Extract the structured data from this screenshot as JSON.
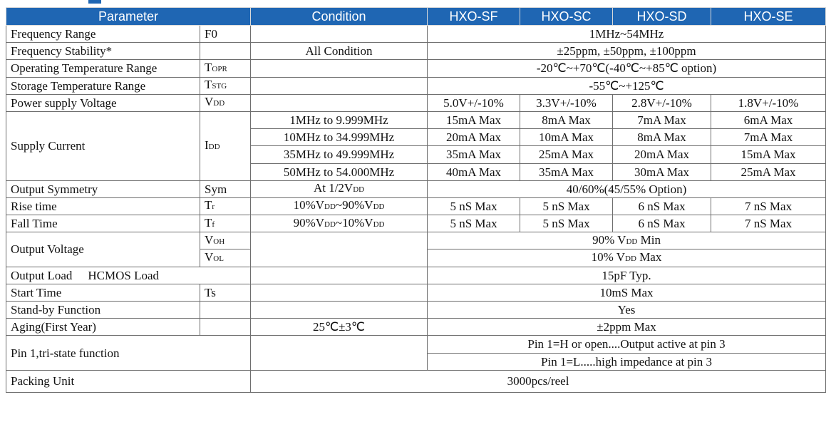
{
  "headers": {
    "parameter": "Parameter",
    "condition": "Condition",
    "sf": "HXO-SF",
    "sc": "HXO-SC",
    "sd": "HXO-SD",
    "se": "HXO-SE"
  },
  "rows": {
    "freq_range": {
      "param": "Frequency Range",
      "sym": "F0",
      "value": "1MHz~54MHz"
    },
    "freq_stab": {
      "param": "Frequency Stability*",
      "cond": "All Condition",
      "value": "±25ppm, ±50ppm, ±100ppm"
    },
    "op_temp": {
      "param": "Operating Temperature Range",
      "sym_main": "T",
      "sym_sub": "OPR",
      "value": "-20℃~+70℃(-40℃~+85℃ option)"
    },
    "st_temp": {
      "param": "Storage Temperature Range",
      "sym_main": "T",
      "sym_sub": "STG",
      "value": "-55℃~+125℃"
    },
    "vdd": {
      "param": "Power supply Voltage",
      "sym_main": "V",
      "sym_sub": "DD",
      "sf": "5.0V+/-10%",
      "sc": "3.3V+/-10%",
      "sd": "2.8V+/-10%",
      "se": "1.8V+/-10%"
    },
    "supply": {
      "param": "Supply Current",
      "sym_main": "I",
      "sym_sub": "DD",
      "rows": [
        {
          "cond": "1MHz to 9.999MHz",
          "sf": "15mA Max",
          "sc": "8mA Max",
          "sd": "7mA Max",
          "se": "6mA Max"
        },
        {
          "cond": "10MHz to 34.999MHz",
          "sf": "20mA Max",
          "sc": "10mA Max",
          "sd": "8mA Max",
          "se": "7mA Max"
        },
        {
          "cond": "35MHz to 49.999MHz",
          "sf": "35mA Max",
          "sc": "25mA Max",
          "sd": "20mA Max",
          "se": "15mA Max"
        },
        {
          "cond": "50MHz to 54.000MHz",
          "sf": "40mA Max",
          "sc": "35mA Max",
          "sd": "30mA Max",
          "se": "25mA Max"
        }
      ]
    },
    "symmetry": {
      "param": "Output Symmetry",
      "sym": "Sym",
      "cond_main": "At 1/2V",
      "cond_sub": "DD",
      "value": "40/60%(45/55% Option)"
    },
    "rise": {
      "param": "Rise time",
      "sym_main": "T",
      "sym_sub": "r",
      "cond_a": "10%V",
      "cond_b": "DD",
      "cond_c": "~90%V",
      "cond_d": "DD",
      "sf": "5 nS Max",
      "sc": "5 nS Max",
      "sd": "6 nS Max",
      "se": "7 nS Max"
    },
    "fall": {
      "param": "Fall Time",
      "sym_main": "T",
      "sym_sub": "f",
      "cond_a": "90%V",
      "cond_b": "DD",
      "cond_c": "~10%V",
      "cond_d": "DD",
      "sf": "5 nS Max",
      "sc": "5 nS Max",
      "sd": "6 nS Max",
      "se": "7 nS Max"
    },
    "out_v": {
      "param": "Output Voltage",
      "voh_main": "V",
      "voh_sub": "OH",
      "vol_main": "V",
      "vol_sub": "OL",
      "voh_a": "90% V",
      "voh_b": "DD",
      "voh_c": " Min",
      "vol_a": "10% V",
      "vol_b": "DD",
      "vol_c": " Max"
    },
    "load": {
      "param": "Output Load",
      "param2": "HCMOS Load",
      "value": "15pF Typ."
    },
    "start": {
      "param": "Start Time",
      "sym": "Ts",
      "value": "10mS Max"
    },
    "standby": {
      "param": "Stand-by Function",
      "value": "Yes"
    },
    "aging": {
      "param": "Aging(First Year)",
      "cond": "25℃±3℃",
      "value": "±2ppm Max"
    },
    "pin1": {
      "param": "Pin 1,tri-state function",
      "v1": "Pin 1=H or open....Output active at pin 3",
      "v2": "Pin 1=L.....high impedance at pin 3"
    },
    "packing": {
      "param": "Packing Unit",
      "value": "3000pcs/reel"
    }
  }
}
